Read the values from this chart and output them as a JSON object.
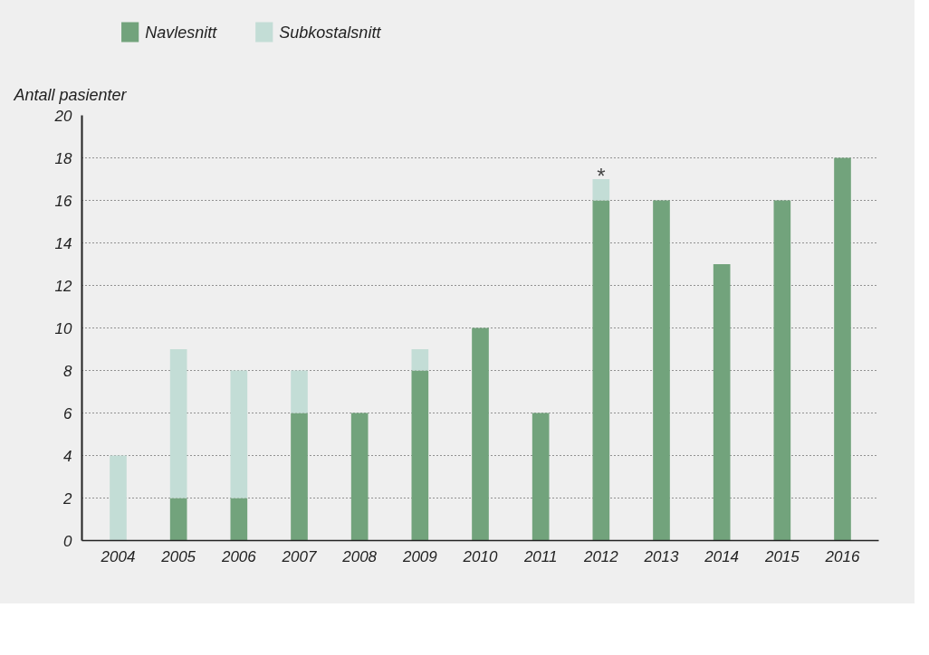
{
  "chart_data": {
    "type": "bar",
    "stacked": true,
    "ylabel": "Antall pasienter",
    "categories": [
      "2004",
      "2005",
      "2006",
      "2007",
      "2008",
      "2009",
      "2010",
      "2011",
      "2012",
      "2013",
      "2014",
      "2015",
      "2016"
    ],
    "series": [
      {
        "name": "Navlesnitt",
        "color": "#72a37c",
        "values": [
          0,
          2,
          2,
          6,
          6,
          8,
          10,
          6,
          16,
          16,
          13,
          16,
          18
        ]
      },
      {
        "name": "Subkostalsnitt",
        "color": "#c3ddd6",
        "values": [
          4,
          7,
          6,
          2,
          0,
          1,
          0,
          0,
          1,
          0,
          0,
          0,
          0
        ]
      }
    ],
    "ylim": [
      0,
      20
    ],
    "yticks": [
      0,
      2,
      4,
      6,
      8,
      10,
      12,
      14,
      16,
      18,
      20
    ],
    "grid": "y",
    "legend": "top left",
    "annotations": [
      {
        "text": "*",
        "x": "2012",
        "y": 17
      }
    ]
  }
}
